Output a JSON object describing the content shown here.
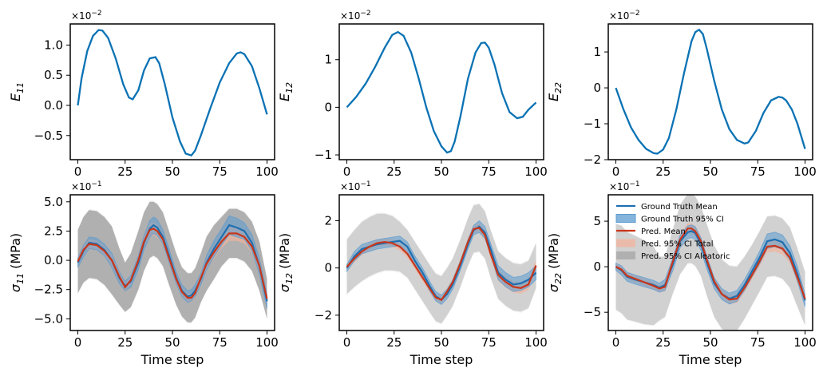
{
  "colors": {
    "strain_line": "#0a72b4",
    "gt_mean": "#1f6fb0",
    "gt_ci": "#5b9bd0",
    "pred_mean": "#c8361a",
    "pred_ci_total": "#f1b39c",
    "pred_ci_aleatoric": "#9a9a9a"
  },
  "legend": {
    "location": "upper-left of bottom-right panel",
    "entries": [
      "Ground Truth Mean",
      "Ground Truth 95% CI",
      "Pred. Mean",
      "Pred. 95% CI Total",
      "Pred. 95% CI Aleatoric"
    ]
  },
  "chart_data": [
    {
      "type": "line",
      "ylabel": "E11",
      "xlabel": "",
      "multiplier": "×10−2",
      "xlim": [
        -4,
        104
      ],
      "ylim": [
        -0.9,
        1.35
      ],
      "xticks": [
        "0",
        "25",
        "50",
        "75",
        "100"
      ],
      "yticks": [
        {
          "v": -0.5,
          "label": "−0.5"
        },
        {
          "v": 0.0,
          "label": "0.0"
        },
        {
          "v": 0.5,
          "label": "0.5"
        },
        {
          "v": 1.0,
          "label": "1.0"
        }
      ],
      "series": [
        {
          "x": [
            0,
            2,
            5,
            8,
            11,
            13,
            16,
            20,
            24,
            27,
            29,
            32,
            35,
            38,
            41,
            43,
            46,
            50,
            54,
            57,
            60,
            62,
            65,
            70,
            75,
            80,
            84,
            86,
            88,
            92,
            96,
            100
          ],
          "y": [
            0.0,
            0.45,
            0.9,
            1.15,
            1.25,
            1.24,
            1.12,
            0.78,
            0.35,
            0.13,
            0.1,
            0.25,
            0.58,
            0.78,
            0.8,
            0.7,
            0.35,
            -0.2,
            -0.6,
            -0.8,
            -0.83,
            -0.75,
            -0.5,
            -0.05,
            0.38,
            0.7,
            0.86,
            0.88,
            0.85,
            0.65,
            0.28,
            -0.15
          ]
        }
      ]
    },
    {
      "type": "line",
      "ylabel": "E12",
      "xlabel": "",
      "multiplier": "×10−2",
      "xlim": [
        -4,
        104
      ],
      "ylim": [
        -1.1,
        1.75
      ],
      "xticks": [
        "0",
        "25",
        "50",
        "75",
        "100"
      ],
      "yticks": [
        {
          "v": -1,
          "label": "−1"
        },
        {
          "v": 0,
          "label": "0"
        },
        {
          "v": 1,
          "label": "1"
        }
      ],
      "series": [
        {
          "x": [
            0,
            5,
            10,
            15,
            20,
            24,
            27,
            30,
            34,
            38,
            42,
            46,
            50,
            53,
            55,
            57,
            60,
            64,
            68,
            71,
            73,
            75,
            78,
            82,
            86,
            90,
            93,
            96,
            100
          ],
          "y": [
            0.0,
            0.22,
            0.5,
            0.85,
            1.25,
            1.52,
            1.58,
            1.5,
            1.15,
            0.6,
            0.0,
            -0.5,
            -0.82,
            -0.95,
            -0.92,
            -0.72,
            -0.2,
            0.6,
            1.15,
            1.35,
            1.36,
            1.25,
            0.9,
            0.3,
            -0.1,
            -0.23,
            -0.2,
            -0.05,
            0.1
          ]
        }
      ]
    },
    {
      "type": "line",
      "ylabel": "E22",
      "xlabel": "",
      "multiplier": "×10−2",
      "xlim": [
        -4,
        104
      ],
      "ylim": [
        -2.0,
        1.78
      ],
      "xticks": [
        "0",
        "25",
        "50",
        "75",
        "100"
      ],
      "yticks": [
        {
          "v": -2,
          "label": "−2"
        },
        {
          "v": -1,
          "label": "−1"
        },
        {
          "v": 0,
          "label": "0"
        },
        {
          "v": 1,
          "label": "1"
        }
      ],
      "series": [
        {
          "x": [
            0,
            4,
            8,
            12,
            16,
            20,
            22,
            25,
            28,
            32,
            36,
            40,
            42,
            44,
            46,
            48,
            52,
            56,
            60,
            64,
            68,
            70,
            74,
            78,
            82,
            86,
            88,
            90,
            93,
            96,
            100
          ],
          "y": [
            0.0,
            -0.6,
            -1.1,
            -1.45,
            -1.7,
            -1.82,
            -1.83,
            -1.72,
            -1.4,
            -0.6,
            0.4,
            1.3,
            1.55,
            1.62,
            1.5,
            1.1,
            0.2,
            -0.6,
            -1.15,
            -1.45,
            -1.55,
            -1.52,
            -1.2,
            -0.7,
            -0.35,
            -0.25,
            -0.27,
            -0.35,
            -0.6,
            -1.0,
            -1.7
          ]
        }
      ]
    },
    {
      "type": "line",
      "ylabel": "σ11 (MPa)",
      "xlabel": "Time step",
      "multiplier": "×10−1",
      "xlim": [
        -4,
        104
      ],
      "ylim": [
        -6.0,
        5.6
      ],
      "xticks": [
        "0",
        "25",
        "50",
        "75",
        "100"
      ],
      "yticks": [
        {
          "v": -5,
          "label": "−5.0"
        },
        {
          "v": -2.5,
          "label": "−2.5"
        },
        {
          "v": 0,
          "label": "0.0"
        },
        {
          "v": 2.5,
          "label": "2.5"
        },
        {
          "v": 5,
          "label": "5.0"
        }
      ],
      "x": [
        0,
        3,
        6,
        10,
        14,
        18,
        22,
        25,
        28,
        32,
        35,
        38,
        40,
        42,
        45,
        48,
        52,
        55,
        58,
        60,
        62,
        65,
        68,
        72,
        76,
        80,
        84,
        88,
        92,
        96,
        100
      ],
      "gt_mean": [
        -0.2,
        0.8,
        1.5,
        1.4,
        0.9,
        0.0,
        -1.5,
        -2.2,
        -1.8,
        -0.2,
        1.5,
        2.7,
        3.0,
        2.8,
        2.0,
        0.5,
        -1.5,
        -2.6,
        -3.1,
        -3.0,
        -2.6,
        -1.6,
        -0.2,
        1.0,
        2.0,
        3.0,
        2.8,
        2.5,
        1.5,
        -0.5,
        -3.5
      ],
      "gt_ci_half": [
        0.4,
        0.5,
        0.5,
        0.5,
        0.5,
        0.6,
        0.5,
        0.4,
        0.5,
        0.6,
        0.6,
        0.7,
        0.7,
        0.7,
        0.6,
        0.6,
        0.5,
        0.5,
        0.5,
        0.5,
        0.5,
        0.5,
        0.6,
        0.7,
        0.7,
        0.8,
        0.8,
        0.7,
        0.7,
        0.7,
        0.6
      ],
      "pred_mean": [
        -0.1,
        0.9,
        1.4,
        1.3,
        0.8,
        0.0,
        -1.4,
        -2.3,
        -1.7,
        0.0,
        1.6,
        2.6,
        2.7,
        2.5,
        1.8,
        0.3,
        -1.6,
        -2.7,
        -3.2,
        -3.2,
        -2.8,
        -1.5,
        -0.3,
        0.7,
        1.6,
        2.3,
        2.3,
        2.0,
        1.2,
        -0.5,
        -3.3
      ],
      "pred_total_half": [
        2.8,
        2.9,
        3.0,
        3.0,
        3.0,
        3.0,
        2.5,
        2.2,
        2.4,
        2.6,
        2.6,
        2.5,
        2.4,
        2.4,
        2.4,
        2.4,
        2.3,
        2.2,
        2.2,
        2.2,
        2.2,
        2.2,
        2.4,
        2.4,
        2.2,
        2.2,
        2.2,
        2.2,
        2.2,
        2.2,
        1.8
      ],
      "pred_ale_half": [
        2.7,
        2.8,
        2.9,
        2.9,
        2.9,
        2.9,
        2.4,
        2.1,
        2.3,
        2.5,
        2.5,
        2.4,
        2.3,
        2.3,
        2.3,
        2.3,
        2.2,
        2.1,
        2.1,
        2.1,
        2.1,
        2.1,
        2.3,
        2.3,
        2.1,
        2.1,
        2.1,
        2.1,
        2.1,
        2.1,
        1.7
      ]
    },
    {
      "type": "line",
      "ylabel": "σ12 (MPa)",
      "xlabel": "Time step",
      "multiplier": "×10−1",
      "xlim": [
        -4,
        104
      ],
      "ylim": [
        -2.65,
        3.1
      ],
      "xticks": [
        "0",
        "25",
        "50",
        "75",
        "100"
      ],
      "yticks": [
        {
          "v": -2,
          "label": "−2"
        },
        {
          "v": 0,
          "label": "0"
        },
        {
          "v": 2,
          "label": "2"
        }
      ],
      "x": [
        0,
        4,
        8,
        12,
        16,
        20,
        24,
        28,
        32,
        36,
        40,
        44,
        47,
        50,
        53,
        56,
        60,
        64,
        67,
        70,
        73,
        76,
        80,
        84,
        88,
        92,
        96,
        100
      ],
      "gt_mean": [
        0.0,
        0.5,
        0.8,
        0.9,
        1.0,
        1.05,
        1.1,
        1.15,
        0.9,
        0.3,
        -0.2,
        -0.8,
        -1.2,
        -1.35,
        -1.1,
        -0.7,
        0.1,
        1.0,
        1.6,
        1.75,
        1.5,
        0.8,
        -0.2,
        -0.5,
        -0.7,
        -0.65,
        -0.5,
        -0.2
      ],
      "gt_ci_half": [
        0.15,
        0.2,
        0.2,
        0.2,
        0.2,
        0.2,
        0.2,
        0.2,
        0.2,
        0.2,
        0.2,
        0.2,
        0.2,
        0.2,
        0.2,
        0.2,
        0.2,
        0.2,
        0.2,
        0.25,
        0.25,
        0.25,
        0.3,
        0.3,
        0.3,
        0.3,
        0.3,
        0.3
      ],
      "pred_mean": [
        0.05,
        0.4,
        0.7,
        0.9,
        1.05,
        1.1,
        1.05,
        0.9,
        0.6,
        0.1,
        -0.4,
        -0.9,
        -1.25,
        -1.35,
        -1.0,
        -0.6,
        0.2,
        1.1,
        1.65,
        1.7,
        1.4,
        0.6,
        -0.3,
        -0.6,
        -0.8,
        -0.85,
        -0.7,
        0.1
      ],
      "pred_total_half": [
        1.2,
        1.25,
        1.3,
        1.3,
        1.3,
        1.25,
        1.2,
        1.1,
        1.05,
        1.05,
        1.05,
        1.05,
        1.05,
        1.05,
        1.05,
        1.05,
        1.05,
        1.05,
        1.05,
        1.05,
        1.05,
        1.05,
        1.05,
        1.05,
        1.05,
        1.05,
        1.05,
        1.0
      ],
      "pred_ale_half": [
        1.15,
        1.2,
        1.25,
        1.25,
        1.25,
        1.2,
        1.15,
        1.05,
        1.0,
        1.0,
        1.0,
        1.0,
        1.0,
        1.0,
        1.0,
        1.0,
        1.0,
        1.0,
        1.0,
        1.0,
        1.0,
        1.0,
        1.0,
        1.0,
        1.0,
        1.0,
        1.0,
        0.95
      ]
    },
    {
      "type": "line",
      "ylabel": "σ22 (MPa)",
      "xlabel": "Time step",
      "multiplier": "×10−1",
      "xlim": [
        -4,
        104
      ],
      "ylim": [
        -7.0,
        7.9
      ],
      "xticks": [
        "0",
        "25",
        "50",
        "75",
        "100"
      ],
      "yticks": [
        {
          "v": -5,
          "label": "−5"
        },
        {
          "v": 0,
          "label": "0"
        },
        {
          "v": 5,
          "label": "5"
        }
      ],
      "x": [
        0,
        3,
        6,
        10,
        15,
        20,
        23,
        26,
        30,
        34,
        38,
        40,
        42,
        45,
        48,
        52,
        56,
        60,
        64,
        68,
        72,
        76,
        80,
        84,
        88,
        92,
        96,
        100
      ],
      "gt_mean": [
        0.0,
        -0.4,
        -1.1,
        -1.4,
        -1.7,
        -2.0,
        -2.3,
        -2.0,
        0.2,
        2.8,
        3.8,
        3.9,
        3.7,
        2.5,
        0.5,
        -1.8,
        -3.0,
        -3.5,
        -3.2,
        -2.0,
        -0.5,
        1.0,
        2.8,
        3.0,
        2.7,
        1.5,
        -0.8,
        -3.7
      ],
      "gt_ci_half": [
        0.4,
        0.5,
        0.5,
        0.5,
        0.5,
        0.5,
        0.5,
        0.6,
        0.7,
        0.7,
        0.7,
        0.7,
        0.7,
        0.7,
        0.7,
        0.6,
        0.6,
        0.6,
        0.6,
        0.6,
        0.6,
        0.7,
        0.8,
        0.8,
        0.8,
        0.8,
        0.8,
        0.7
      ],
      "pred_mean": [
        0.0,
        -0.3,
        -1.0,
        -1.3,
        -1.7,
        -2.1,
        -2.4,
        -2.2,
        0.5,
        3.0,
        4.2,
        4.2,
        3.9,
        2.8,
        0.8,
        -1.6,
        -3.0,
        -3.6,
        -3.5,
        -2.3,
        -0.9,
        0.6,
        2.2,
        2.3,
        2.0,
        1.0,
        -1.2,
        -3.5
      ],
      "pred_total_half": [
        4.8,
        4.9,
        4.9,
        4.8,
        4.7,
        4.4,
        3.6,
        3.4,
        3.6,
        3.9,
        3.9,
        3.9,
        3.9,
        3.9,
        4.0,
        4.0,
        3.9,
        3.8,
        3.6,
        3.5,
        3.4,
        3.4,
        3.4,
        3.4,
        3.4,
        3.4,
        3.3,
        3.0
      ],
      "pred_ale_half": [
        4.7,
        4.8,
        4.8,
        4.7,
        4.6,
        4.3,
        3.5,
        3.3,
        3.5,
        3.8,
        3.8,
        3.8,
        3.8,
        3.8,
        3.9,
        3.9,
        3.8,
        3.7,
        3.5,
        3.4,
        3.3,
        3.3,
        3.3,
        3.3,
        3.3,
        3.3,
        3.2,
        2.9
      ]
    }
  ]
}
